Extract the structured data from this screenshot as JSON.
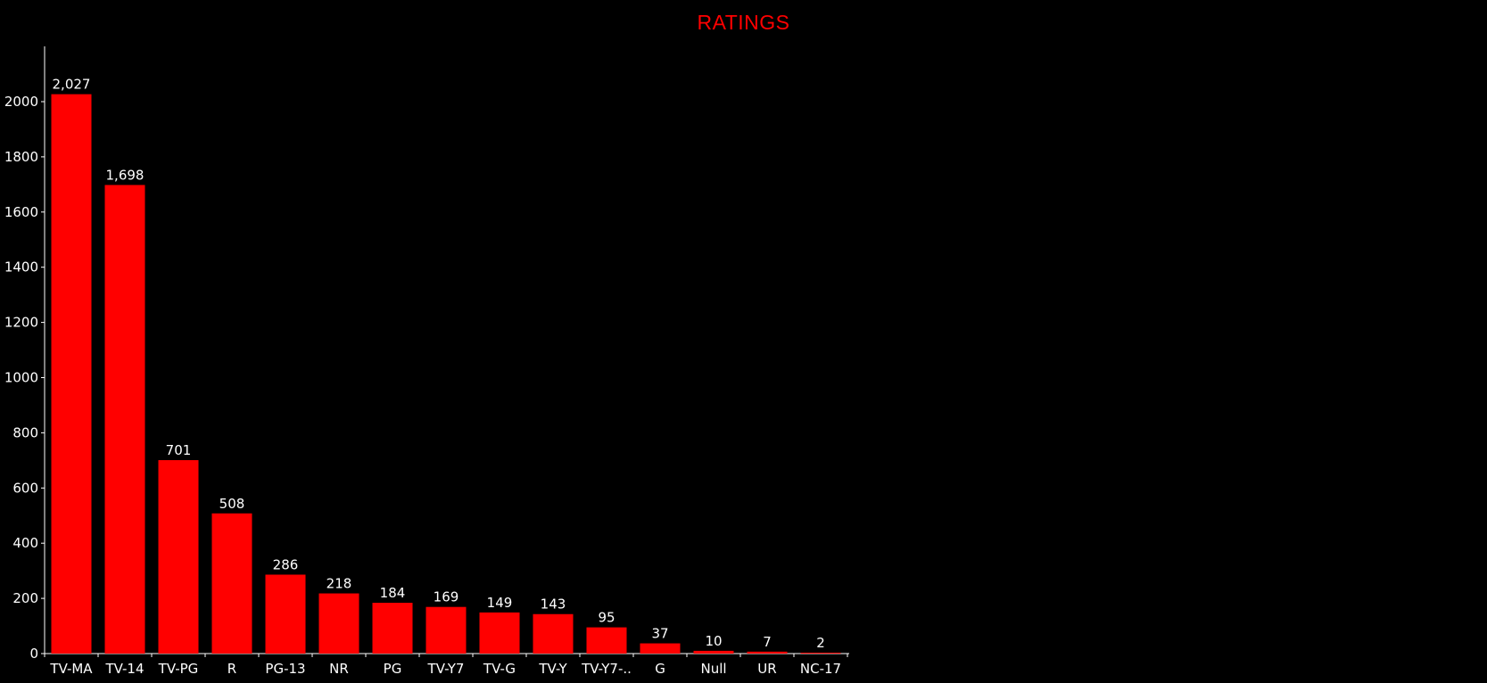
{
  "chart_data": {
    "type": "bar",
    "title": "RATINGS",
    "xlabel": "",
    "ylabel": "",
    "categories": [
      "TV-MA",
      "TV-14",
      "TV-PG",
      "R",
      "PG-13",
      "NR",
      "PG",
      "TV-Y7",
      "TV-G",
      "TV-Y",
      "TV-Y7-..",
      "G",
      "Null",
      "UR",
      "NC-17"
    ],
    "values": [
      2027,
      1698,
      701,
      508,
      286,
      218,
      184,
      169,
      149,
      143,
      95,
      37,
      10,
      7,
      2
    ],
    "value_labels": [
      "2,027",
      "1,698",
      "701",
      "508",
      "286",
      "218",
      "184",
      "169",
      "149",
      "143",
      "95",
      "37",
      "10",
      "7",
      "2"
    ],
    "ylim": [
      0,
      2200
    ],
    "yticks": [
      0,
      200,
      400,
      600,
      800,
      1000,
      1200,
      1400,
      1600,
      1800,
      2000
    ],
    "grid": false,
    "colors": {
      "bar": "#ff0000",
      "title": "#ff0000",
      "axis": "#ffffff",
      "text": "#ffffff",
      "background": "#000000"
    }
  }
}
